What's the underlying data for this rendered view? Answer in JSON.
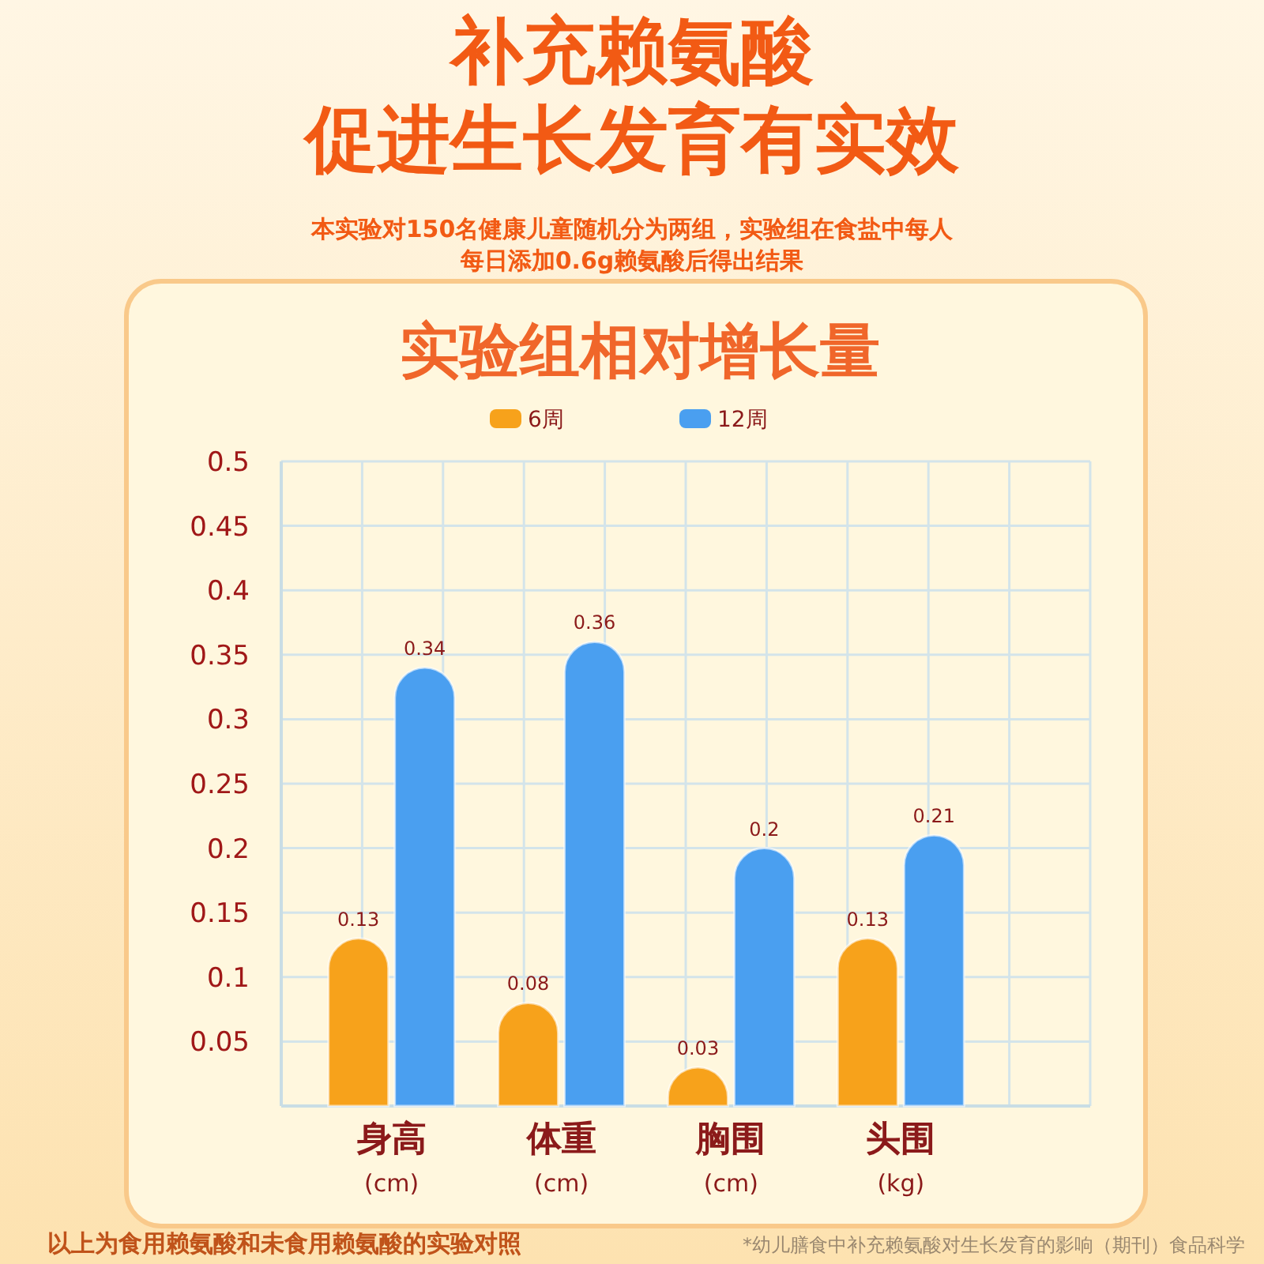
{
  "chart_data": {
    "type": "bar",
    "title": "补充赖氨酸促进生长发育有实效",
    "subtitle": "实验组相对增长量",
    "annotations": [
      "本实验对150名健康儿童随机分为两组，实验组在食盐中每人每日添加0.6g赖氨酸后得出结果",
      "以上为食用赖氨酸和未食用赖氨酸的实验对照",
      "*幼儿膳食中补充赖氨酸对生长发育的影响（期刊）食品科学"
    ],
    "categories": [
      "身高\n(cm)",
      "体重\n(cm)",
      "胸围\n(cm)",
      "头围\n(kg)"
    ],
    "series": [
      {
        "name": "6周",
        "color": "#f7a21b",
        "values": [
          0.13,
          0.08,
          0.03,
          0.13
        ]
      },
      {
        "name": "12周",
        "color": "#4a9ff0",
        "values": [
          0.34,
          0.36,
          0.2,
          0.21
        ]
      }
    ],
    "ylim": [
      0,
      0.5
    ],
    "yticks": [
      0.05,
      0.1,
      0.15,
      0.2,
      0.25,
      0.3,
      0.35,
      0.4,
      0.45,
      0.5
    ],
    "grid": true,
    "legend": "top",
    "data_labels": true
  }
}
